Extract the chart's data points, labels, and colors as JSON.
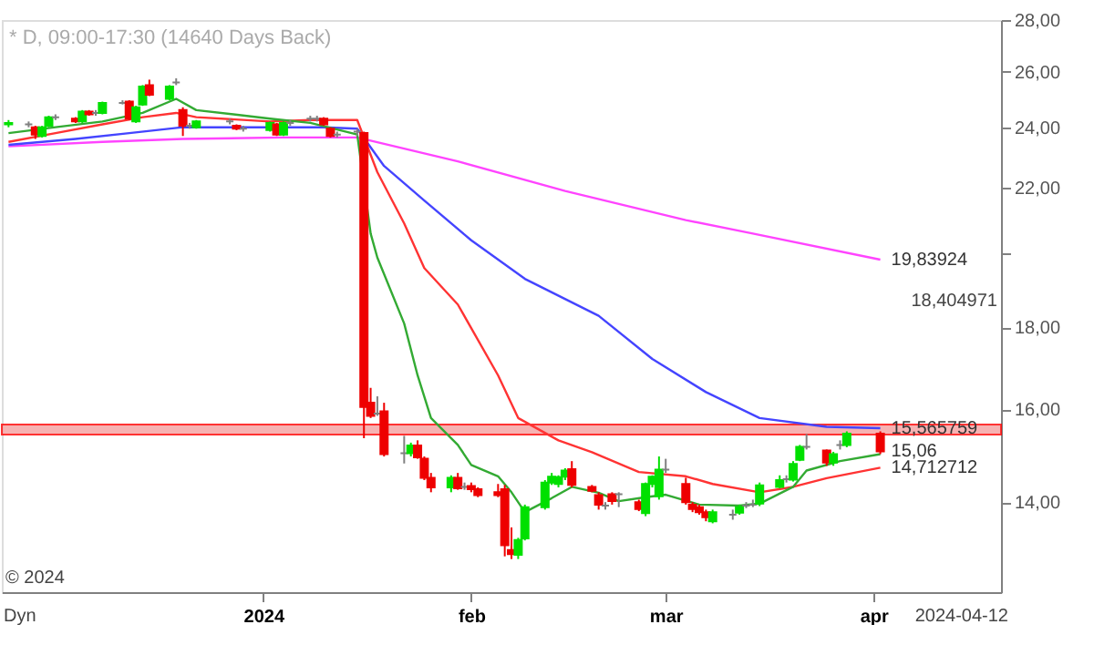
{
  "chart_data": {
    "type": "candlestick",
    "title": "* D, 09:00-17:30 (14640 Days Back)",
    "x": [
      "2023-11-24",
      "2023-11-27",
      "2023-11-28",
      "2023-11-29",
      "2023-11-30",
      "2023-12-01",
      "2023-12-04",
      "2023-12-05",
      "2023-12-06",
      "2023-12-07",
      "2023-12-08",
      "2023-12-11",
      "2023-12-12",
      "2023-12-13",
      "2023-12-14",
      "2023-12-15",
      "2023-12-18",
      "2023-12-19",
      "2023-12-20",
      "2023-12-21",
      "2023-12-22",
      "2023-12-27",
      "2023-12-28",
      "2023-12-29",
      "2024-01-02",
      "2024-01-03",
      "2024-01-04",
      "2024-01-05",
      "2024-01-08",
      "2024-01-09",
      "2024-01-10",
      "2024-01-11",
      "2024-01-12",
      "2024-01-15",
      "2024-01-16",
      "2024-01-17",
      "2024-01-18",
      "2024-01-19",
      "2024-01-22",
      "2024-01-23",
      "2024-01-24",
      "2024-01-25",
      "2024-01-26",
      "2024-01-29",
      "2024-01-30",
      "2024-01-31",
      "2024-02-01",
      "2024-02-02",
      "2024-02-05",
      "2024-02-06",
      "2024-02-07",
      "2024-02-08",
      "2024-02-09",
      "2024-02-12",
      "2024-02-13",
      "2024-02-14",
      "2024-02-15",
      "2024-02-16",
      "2024-02-19",
      "2024-02-20",
      "2024-02-21",
      "2024-02-22",
      "2024-02-23",
      "2024-02-26",
      "2024-02-27",
      "2024-02-28",
      "2024-02-29",
      "2024-03-01",
      "2024-03-04",
      "2024-03-05",
      "2024-03-06",
      "2024-03-07",
      "2024-03-08",
      "2024-03-11",
      "2024-03-12",
      "2024-03-13",
      "2024-03-14",
      "2024-03-15",
      "2024-03-18",
      "2024-03-19",
      "2024-03-20",
      "2024-03-21",
      "2024-03-22",
      "2024-03-25",
      "2024-03-26",
      "2024-03-27",
      "2024-03-28",
      "2024-04-02"
    ],
    "ohlc": [
      [
        24.1,
        24.25,
        24.0,
        24.15
      ],
      [
        24.1,
        24.2,
        24.0,
        24.1
      ],
      [
        24.0,
        24.05,
        23.6,
        23.75
      ],
      [
        23.7,
        24.05,
        23.65,
        24.0
      ],
      [
        24.05,
        24.4,
        24.0,
        24.35
      ],
      [
        24.35,
        24.45,
        24.25,
        24.35
      ],
      [
        24.3,
        24.35,
        24.15,
        24.2
      ],
      [
        24.2,
        24.6,
        24.15,
        24.55
      ],
      [
        24.55,
        24.6,
        24.4,
        24.45
      ],
      [
        24.5,
        24.6,
        24.4,
        24.5
      ],
      [
        24.5,
        24.9,
        24.45,
        24.85
      ],
      [
        24.85,
        24.95,
        24.8,
        24.85
      ],
      [
        24.9,
        24.95,
        24.25,
        24.3
      ],
      [
        24.2,
        24.75,
        24.15,
        24.7
      ],
      [
        24.8,
        25.5,
        24.75,
        25.45
      ],
      [
        25.5,
        25.7,
        25.1,
        25.15
      ],
      [
        25.0,
        25.5,
        24.95,
        25.45
      ],
      [
        25.6,
        25.75,
        25.5,
        25.6
      ],
      [
        24.6,
        24.7,
        23.7,
        24.05
      ],
      [
        24.05,
        24.15,
        23.95,
        24.05
      ],
      [
        24.0,
        24.25,
        23.95,
        24.2
      ],
      [
        24.2,
        24.3,
        24.1,
        24.2
      ],
      [
        24.05,
        24.1,
        23.9,
        23.95
      ],
      [
        23.95,
        24.05,
        23.85,
        23.95
      ],
      [
        23.9,
        24.2,
        23.85,
        24.15
      ],
      [
        24.1,
        24.15,
        23.7,
        23.75
      ],
      [
        23.75,
        24.2,
        23.7,
        24.15
      ],
      [
        24.15,
        24.25,
        24.05,
        24.15
      ],
      [
        24.3,
        24.4,
        24.2,
        24.3
      ],
      [
        24.3,
        24.4,
        24.2,
        24.3
      ],
      [
        24.3,
        24.35,
        24.05,
        24.1
      ],
      [
        23.95,
        24.0,
        23.65,
        23.7
      ],
      [
        23.75,
        23.85,
        23.65,
        23.75
      ],
      [
        23.85,
        23.95,
        23.7,
        23.85
      ],
      [
        23.8,
        23.85,
        15.35,
        16.05
      ],
      [
        16.15,
        16.5,
        15.8,
        15.85
      ],
      [
        15.9,
        16.3,
        15.85,
        15.9
      ],
      [
        15.95,
        16.15,
        14.95,
        15.0
      ],
      [
        15.02,
        15.4,
        14.8,
        15.02
      ],
      [
        15.02,
        15.25,
        14.95,
        15.19
      ],
      [
        15.19,
        15.3,
        14.9,
        14.93
      ],
      [
        14.9,
        14.95,
        14.45,
        14.5
      ],
      [
        14.5,
        14.6,
        14.2,
        14.3
      ],
      [
        14.3,
        14.55,
        14.2,
        14.5
      ],
      [
        14.5,
        14.6,
        14.25,
        14.28
      ],
      [
        14.31,
        14.4,
        14.25,
        14.31
      ],
      [
        14.33,
        14.4,
        14.2,
        14.26
      ],
      [
        14.26,
        14.3,
        14.1,
        14.14
      ],
      [
        14.2,
        14.37,
        14.1,
        14.14
      ],
      [
        14.26,
        14.35,
        12.95,
        13.16
      ],
      [
        13.07,
        13.5,
        12.9,
        12.99
      ],
      [
        12.98,
        13.3,
        12.9,
        13.26
      ],
      [
        13.29,
        13.95,
        13.25,
        13.9
      ],
      [
        13.9,
        14.45,
        13.85,
        14.4
      ],
      [
        14.4,
        14.6,
        14.35,
        14.52
      ],
      [
        14.37,
        14.55,
        14.3,
        14.51
      ],
      [
        14.52,
        14.7,
        14.45,
        14.65
      ],
      [
        14.68,
        14.85,
        14.3,
        14.35
      ],
      [
        14.31,
        14.35,
        14.2,
        14.23
      ],
      [
        14.14,
        14.2,
        13.85,
        13.95
      ],
      [
        13.93,
        14.0,
        13.85,
        13.93
      ],
      [
        14.16,
        14.2,
        13.95,
        14.02
      ],
      [
        14.16,
        14.2,
        13.9,
        14.16
      ],
      [
        14.0,
        14.05,
        13.82,
        13.86
      ],
      [
        13.78,
        14.4,
        13.72,
        14.37
      ],
      [
        14.37,
        14.55,
        14.3,
        14.52
      ],
      [
        14.12,
        14.95,
        14.05,
        14.67
      ],
      [
        14.67,
        14.9,
        14.6,
        14.67
      ],
      [
        14.37,
        14.5,
        13.95,
        14.0
      ],
      [
        13.95,
        14.0,
        13.8,
        13.86
      ],
      [
        13.9,
        13.95,
        13.75,
        13.8
      ],
      [
        13.8,
        13.85,
        13.62,
        13.7
      ],
      [
        13.62,
        13.85,
        13.58,
        13.8
      ],
      [
        13.75,
        13.85,
        13.65,
        13.75
      ],
      [
        13.79,
        13.95,
        13.75,
        13.9
      ],
      [
        13.93,
        14.0,
        13.88,
        13.93
      ],
      [
        13.95,
        14.05,
        13.9,
        13.95
      ],
      [
        13.97,
        14.4,
        13.92,
        14.34
      ],
      [
        14.31,
        14.55,
        14.28,
        14.45
      ],
      [
        14.47,
        14.55,
        14.4,
        14.47
      ],
      [
        14.46,
        14.85,
        14.42,
        14.79
      ],
      [
        14.88,
        15.2,
        14.85,
        15.16
      ],
      [
        15.16,
        15.44,
        15.1,
        15.16
      ],
      [
        15.08,
        15.1,
        14.75,
        14.82
      ],
      [
        14.82,
        15.05,
        14.75,
        15.0
      ],
      [
        15.2,
        15.3,
        15.1,
        15.2
      ],
      [
        15.2,
        15.5,
        15.15,
        15.45
      ],
      [
        15.45,
        15.5,
        15.0,
        15.06
      ]
    ],
    "colors": [
      "#00e000",
      "#808080",
      "#ee0000",
      "#00e000",
      "#00e000",
      "#808080",
      "#ee0000",
      "#00e000",
      "#ee0000",
      "#808080",
      "#00e000",
      "#808080",
      "#ee0000",
      "#00e000",
      "#00e000",
      "#ee0000",
      "#00e000",
      "#808080",
      "#ee0000",
      "#808080",
      "#00e000",
      "#808080",
      "#ee0000",
      "#808080",
      "#00e000",
      "#ee0000",
      "#00e000",
      "#808080",
      "#808080",
      "#808080",
      "#ee0000",
      "#ee0000",
      "#808080",
      "#808080",
      "#ee0000",
      "#ee0000",
      "#808080",
      "#ee0000",
      "#808080",
      "#00e000",
      "#ee0000",
      "#ee0000",
      "#ee0000",
      "#00e000",
      "#ee0000",
      "#808080",
      "#ee0000",
      "#ee0000",
      "#ee0000",
      "#ee0000",
      "#ee0000",
      "#00e000",
      "#00e000",
      "#00e000",
      "#00e000",
      "#00e000",
      "#00e000",
      "#ee0000",
      "#ee0000",
      "#ee0000",
      "#808080",
      "#ee0000",
      "#808080",
      "#ee0000",
      "#00e000",
      "#00e000",
      "#00e000",
      "#808080",
      "#ee0000",
      "#ee0000",
      "#ee0000",
      "#ee0000",
      "#00e000",
      "#808080",
      "#00e000",
      "#808080",
      "#808080",
      "#00e000",
      "#00e000",
      "#808080",
      "#00e000",
      "#00e000",
      "#808080",
      "#ee0000",
      "#00e000",
      "#808080",
      "#00e000",
      "#ee0000"
    ],
    "series": [
      {
        "type": "line",
        "color": "#ff44ff",
        "x": [
          "2023-11-24",
          "2023-12-08",
          "2023-12-20",
          "2024-01-04",
          "2024-01-15",
          "2024-01-30",
          "2024-02-15",
          "2024-03-04",
          "2024-03-14",
          "2024-04-02"
        ],
        "values": [
          23.35,
          23.5,
          23.6,
          23.65,
          23.65,
          22.85,
          21.9,
          21.0,
          20.6,
          19.84
        ]
      },
      {
        "type": "line",
        "color": "#4444ff",
        "x": [
          "2023-11-24",
          "2023-12-04",
          "2023-12-12",
          "2023-12-20",
          "2024-01-02",
          "2024-01-10",
          "2024-01-15",
          "2024-01-19",
          "2024-01-25",
          "2024-02-01",
          "2024-02-09",
          "2024-02-20",
          "2024-02-28",
          "2024-03-07",
          "2024-03-15",
          "2024-03-25",
          "2024-04-02"
        ],
        "values": [
          23.4,
          23.6,
          23.8,
          24.0,
          24.0,
          24.0,
          23.95,
          22.7,
          21.6,
          20.4,
          19.3,
          18.3,
          17.2,
          16.4,
          15.8,
          15.6,
          15.57
        ]
      },
      {
        "type": "line",
        "color": "#ff3333",
        "x": [
          "2023-11-24",
          "2023-12-01",
          "2023-12-08",
          "2023-12-14",
          "2023-12-19",
          "2023-12-22",
          "2024-01-02",
          "2024-01-08",
          "2024-01-15",
          "2024-01-18",
          "2024-01-22",
          "2024-01-25",
          "2024-01-30",
          "2024-02-05",
          "2024-02-08",
          "2024-02-14",
          "2024-02-19",
          "2024-02-26",
          "2024-03-04",
          "2024-03-08",
          "2024-03-15",
          "2024-03-20",
          "2024-03-25",
          "2024-04-02"
        ],
        "values": [
          23.5,
          23.8,
          24.1,
          24.35,
          24.5,
          24.35,
          24.2,
          24.25,
          24.25,
          22.5,
          20.9,
          19.6,
          18.6,
          16.8,
          15.8,
          15.3,
          15.04,
          14.62,
          14.53,
          14.37,
          14.2,
          14.31,
          14.49,
          14.71
        ]
      },
      {
        "type": "line",
        "color": "#33aa33",
        "x": [
          "2023-11-24",
          "2023-12-01",
          "2023-12-08",
          "2023-12-14",
          "2023-12-19",
          "2023-12-22",
          "2024-01-02",
          "2024-01-08",
          "2024-01-15",
          "2024-01-17",
          "2024-01-18",
          "2024-01-22",
          "2024-01-24",
          "2024-01-26",
          "2024-01-30",
          "2024-02-01",
          "2024-02-05",
          "2024-02-07",
          "2024-02-09",
          "2024-02-13",
          "2024-02-16",
          "2024-02-20",
          "2024-02-23",
          "2024-02-27",
          "2024-03-01",
          "2024-03-06",
          "2024-03-12",
          "2024-03-15",
          "2024-03-20",
          "2024-03-22",
          "2024-03-27",
          "2024-04-02"
        ],
        "values": [
          23.8,
          24.0,
          24.2,
          24.5,
          25.0,
          24.6,
          24.3,
          24.15,
          23.75,
          20.6,
          19.9,
          18.1,
          16.8,
          15.8,
          15.2,
          14.77,
          14.53,
          14.2,
          13.8,
          14.08,
          14.31,
          14.19,
          14.02,
          14.1,
          14.15,
          13.95,
          13.93,
          13.97,
          14.31,
          14.65,
          14.85,
          15.0
        ]
      }
    ],
    "bands": [
      {
        "axis": "y",
        "from": 15.43,
        "to": 15.65,
        "color": "#f4a0a0"
      }
    ],
    "log": true,
    "xlim": [
      "2023-11-23",
      "2024-04-20"
    ],
    "xticks": [
      {
        "value": "2024-01-01",
        "label": "2024"
      },
      {
        "value": "2024-02-01",
        "label": "feb"
      },
      {
        "value": "2024-03-01",
        "label": "mar"
      },
      {
        "value": "2024-04-01",
        "label": "apr"
      }
    ],
    "ylim": [
      12.3,
      28
    ],
    "yticks": [
      {
        "value": 14,
        "label": "14,00"
      },
      {
        "value": 16,
        "label": "16,00"
      },
      {
        "value": 18,
        "label": "18,00"
      },
      {
        "value": 20,
        "label": null
      },
      {
        "value": 22,
        "label": "22,00"
      },
      {
        "value": 24,
        "label": "24,00"
      },
      {
        "value": 26,
        "label": "26,00"
      },
      {
        "value": 28,
        "label": "28,00"
      }
    ],
    "annotations": [
      {
        "text": "19,83924",
        "x": "2024-04-02",
        "y": 19.83924
      },
      {
        "text": "15,565759",
        "x": "2024-04-02",
        "y": 15.565759
      },
      {
        "text": "15,06",
        "x": "2024-04-02",
        "y": 15.06
      },
      {
        "text": "14,712712",
        "x": "2024-04-02",
        "y": 14.712712
      },
      "© 2024",
      "18,404971",
      "Dyn",
      "2024-04-12"
    ]
  }
}
